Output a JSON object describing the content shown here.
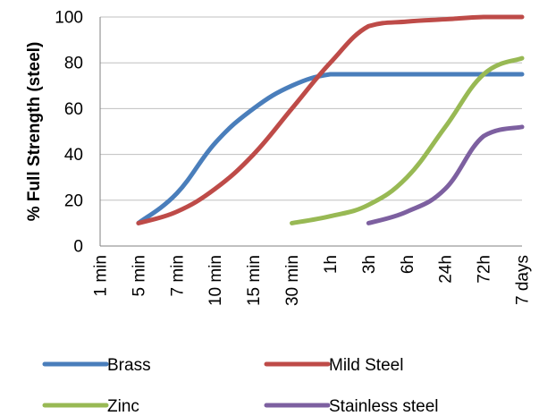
{
  "chart_data": {
    "type": "line",
    "ylabel": "% Full Strength (steel)",
    "xlabel": "",
    "ylim": [
      0,
      100
    ],
    "yticks": [
      0,
      20,
      40,
      60,
      80,
      100
    ],
    "categories": [
      "1 min",
      "5 min",
      "7 min",
      "10 min",
      "15 min",
      "30 min",
      "1h",
      "3h",
      "6h",
      "24h",
      "72h",
      "7 days"
    ],
    "grid": "horizontal",
    "legend_position": "bottom",
    "series": [
      {
        "name": "Brass",
        "color": "#4a7ebb",
        "values": [
          null,
          10,
          23,
          45,
          60,
          70,
          75,
          75,
          75,
          75,
          75,
          75
        ]
      },
      {
        "name": "Mild Steel",
        "color": "#be4b48",
        "values": [
          null,
          10,
          15,
          25,
          40,
          60,
          80,
          96,
          98,
          99,
          100,
          100
        ]
      },
      {
        "name": "Zinc",
        "color": "#98b954",
        "values": [
          null,
          null,
          null,
          null,
          null,
          10,
          13,
          18,
          30,
          52,
          75,
          82
        ]
      },
      {
        "name": "Stainless steel",
        "color": "#7d60a0",
        "values": [
          null,
          null,
          null,
          null,
          null,
          null,
          null,
          10,
          15,
          25,
          48,
          52
        ]
      }
    ]
  }
}
